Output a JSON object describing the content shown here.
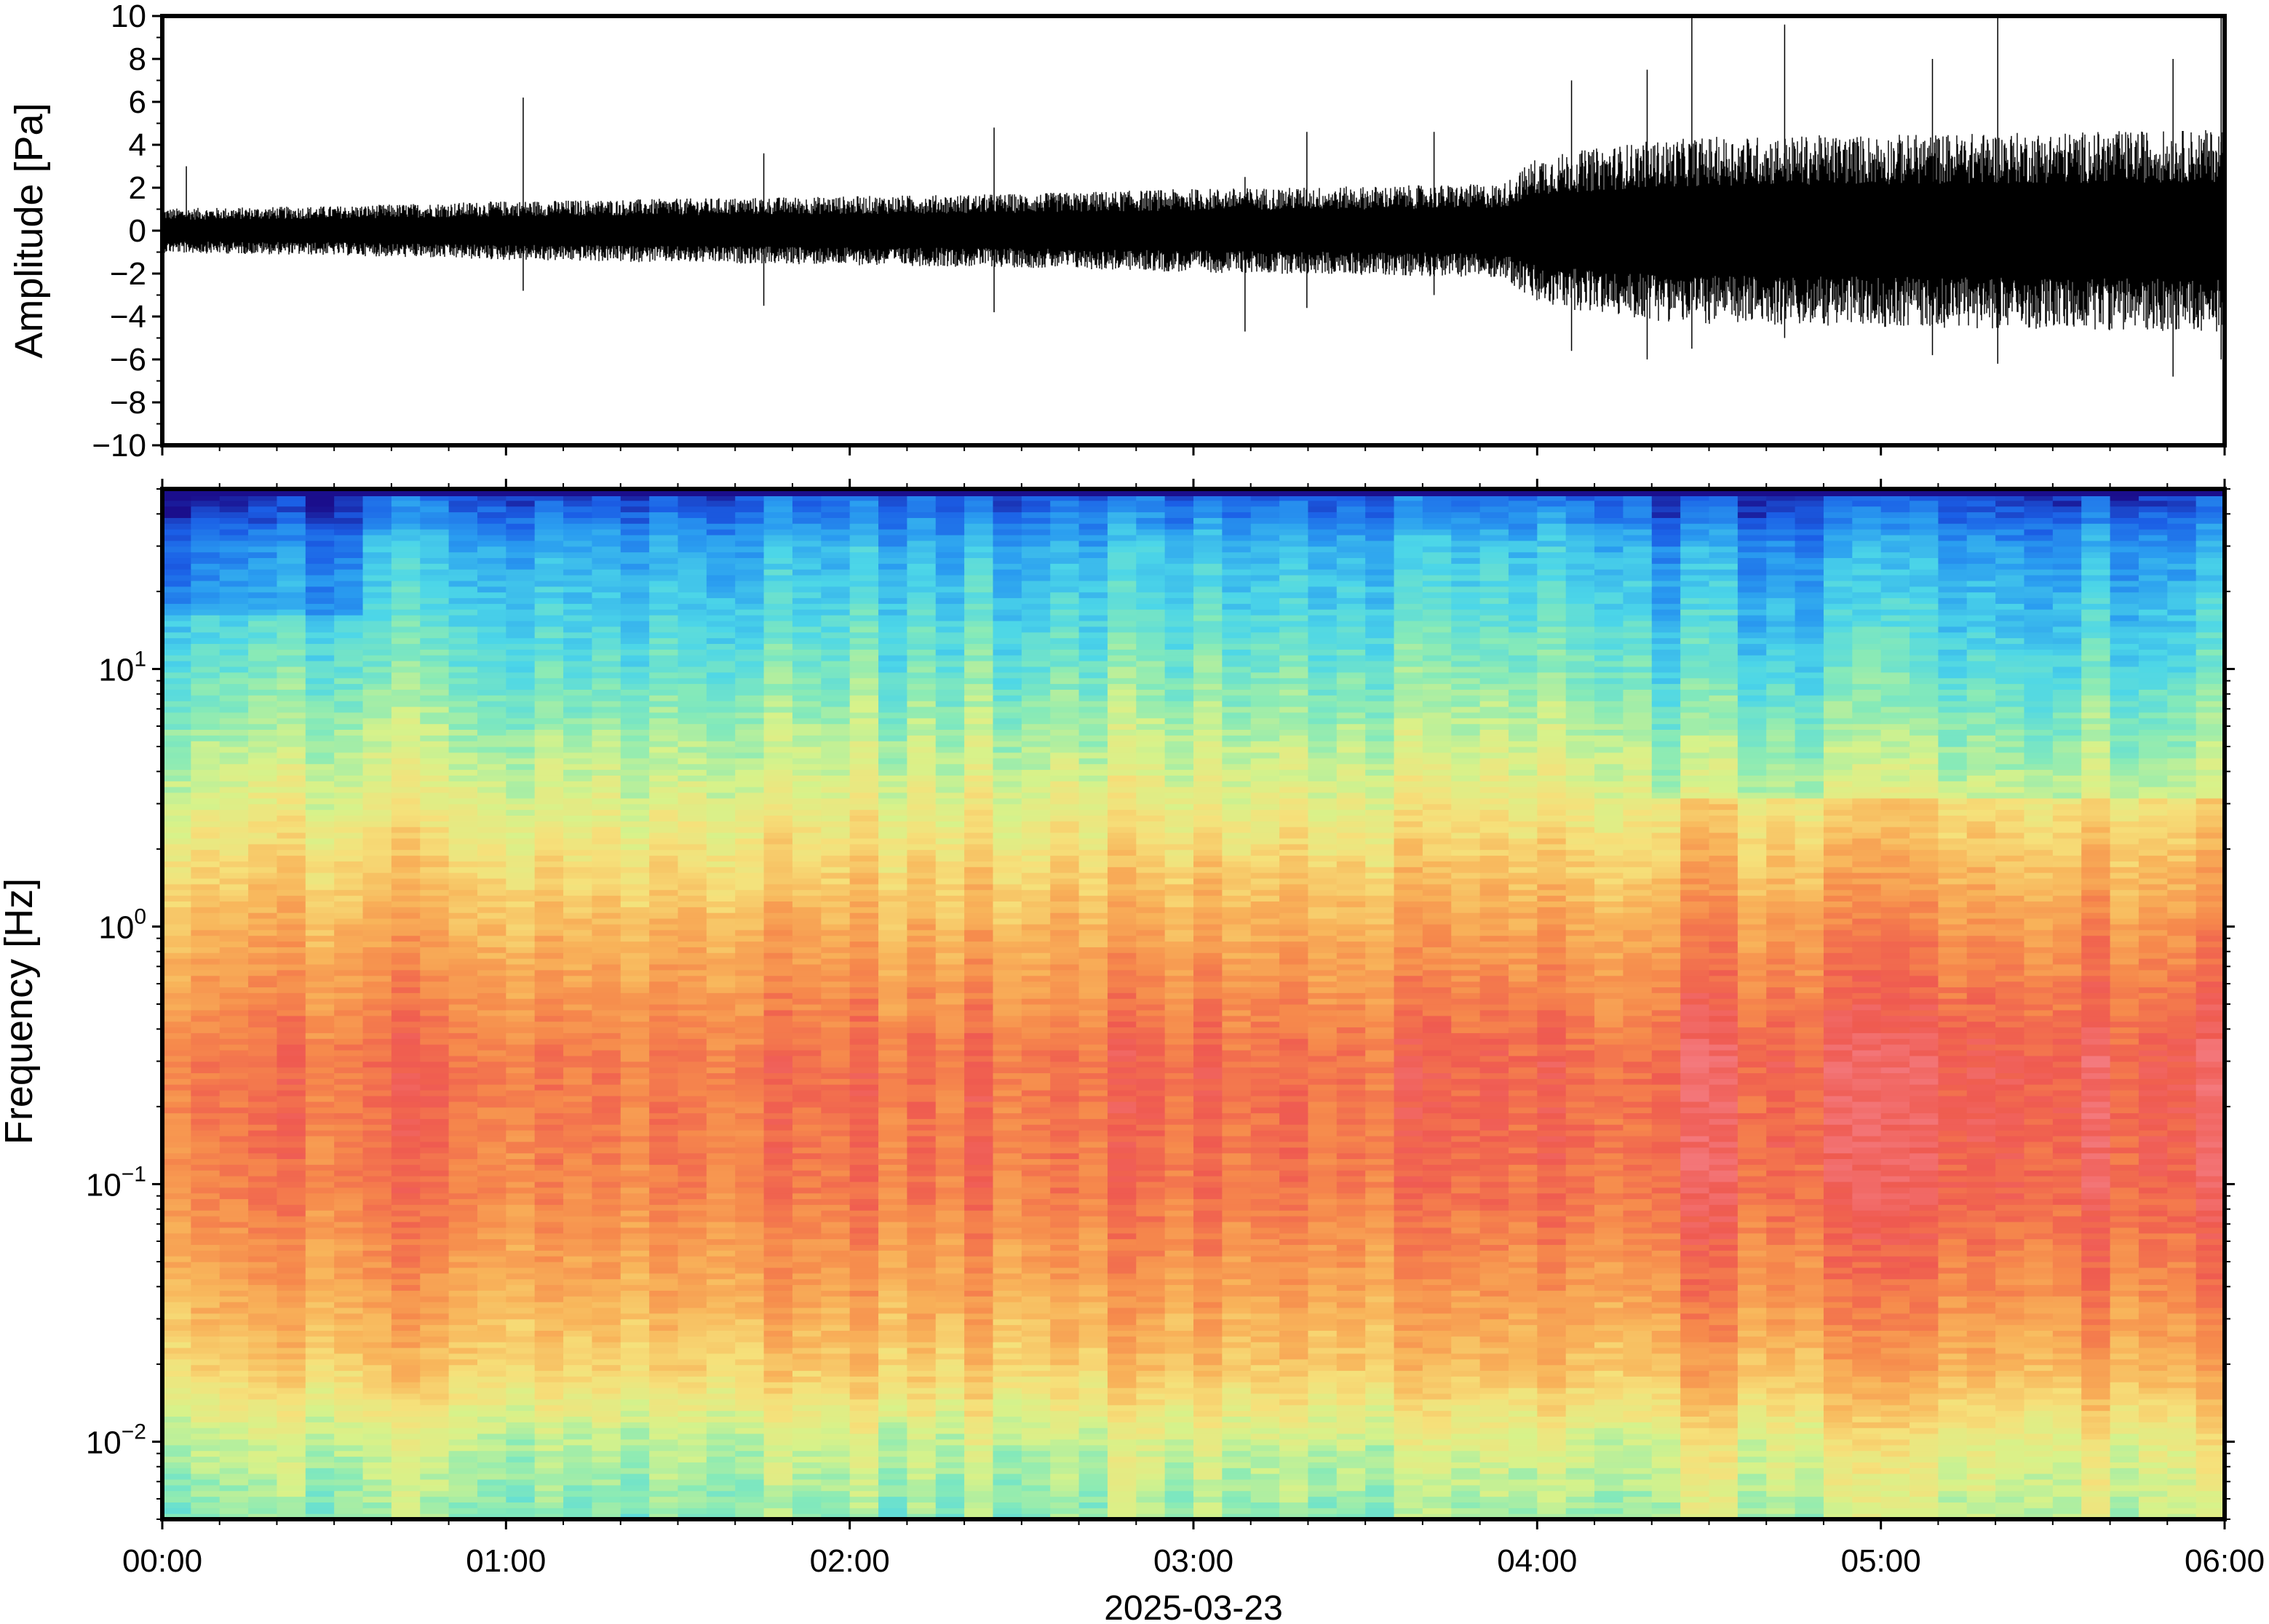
{
  "chart_data": [
    {
      "type": "line",
      "panel": "waveform",
      "title": "",
      "xlabel": "",
      "ylabel": "Amplitude [Pa]",
      "ylim": [
        -10,
        10
      ],
      "yticks": [
        {
          "value": 10,
          "label": "10"
        },
        {
          "value": 8,
          "label": "8"
        },
        {
          "value": 6,
          "label": "6"
        },
        {
          "value": 4,
          "label": "4"
        },
        {
          "value": 2,
          "label": "2"
        },
        {
          "value": 0,
          "label": "0"
        },
        {
          "value": -2,
          "label": "−2"
        },
        {
          "value": -4,
          "label": "−4"
        },
        {
          "value": -6,
          "label": "−6"
        },
        {
          "value": -8,
          "label": "−8"
        },
        {
          "value": -10,
          "label": "−10"
        }
      ],
      "xlim_hours": [
        0,
        6
      ],
      "grid": false,
      "line_color": "#000000",
      "envelope": {
        "time_hours": [
          0,
          0.5,
          1.0,
          1.5,
          2.0,
          2.5,
          3.0,
          3.5,
          3.9,
          4.0,
          4.3,
          4.5,
          5.0,
          5.5,
          6.0
        ],
        "amplitude_pa": [
          0.9,
          1.0,
          1.2,
          1.3,
          1.4,
          1.5,
          1.7,
          1.8,
          1.9,
          3.0,
          3.6,
          3.8,
          3.9,
          4.0,
          4.1
        ]
      },
      "spikes": [
        {
          "t_hours": 0.07,
          "max": 3.0,
          "min": -1.0
        },
        {
          "t_hours": 1.05,
          "max": 6.2,
          "min": -2.8
        },
        {
          "t_hours": 1.75,
          "max": 3.6,
          "min": -3.5
        },
        {
          "t_hours": 2.42,
          "max": 4.8,
          "min": -3.8
        },
        {
          "t_hours": 3.15,
          "max": 2.5,
          "min": -4.7
        },
        {
          "t_hours": 3.33,
          "max": 4.6,
          "min": -3.6
        },
        {
          "t_hours": 3.7,
          "max": 4.6,
          "min": -3.0
        },
        {
          "t_hours": 4.1,
          "max": 7.0,
          "min": -5.6
        },
        {
          "t_hours": 4.32,
          "max": 7.5,
          "min": -6.0
        },
        {
          "t_hours": 4.45,
          "max": 10.0,
          "min": -5.5
        },
        {
          "t_hours": 4.72,
          "max": 9.6,
          "min": -5.0
        },
        {
          "t_hours": 5.15,
          "max": 8.0,
          "min": -5.8
        },
        {
          "t_hours": 5.34,
          "max": 10.0,
          "min": -6.2
        },
        {
          "t_hours": 5.85,
          "max": 8.0,
          "min": -6.8
        },
        {
          "t_hours": 5.99,
          "max": 10.0,
          "min": -6.0
        }
      ]
    },
    {
      "type": "heatmap",
      "panel": "spectrogram",
      "title": "",
      "xlabel": "2025-03-23",
      "ylabel": "Frequency [Hz]",
      "yscale": "log",
      "ylim_hz": [
        0.005,
        50
      ],
      "yticks": [
        {
          "value": 10,
          "base": "10",
          "exp": "1"
        },
        {
          "value": 1,
          "base": "10",
          "exp": "0"
        },
        {
          "value": 0.1,
          "base": "10",
          "exp": "−1"
        },
        {
          "value": 0.01,
          "base": "10",
          "exp": "−2"
        }
      ],
      "colormap": [
        "#1a0e8c",
        "#1b5fe6",
        "#2a9df0",
        "#4cd6e8",
        "#86eab8",
        "#d7f28a",
        "#f6e07a",
        "#f8b45a",
        "#f68a4c",
        "#ef5a50",
        "#f47a7e"
      ],
      "time_hours": [
        0,
        2,
        4,
        4.3,
        6
      ],
      "description_profile": {
        "freq_hz": [
          0.005,
          0.01,
          0.02,
          0.04,
          0.1,
          0.3,
          1,
          3,
          10,
          30,
          45
        ],
        "level_0_to_1": [
          0.42,
          0.5,
          0.66,
          0.75,
          0.84,
          0.86,
          0.72,
          0.55,
          0.38,
          0.25,
          0.12
        ]
      }
    }
  ],
  "xaxis": {
    "ticks": [
      {
        "value": 0,
        "label": "00:00"
      },
      {
        "value": 1,
        "label": "01:00"
      },
      {
        "value": 2,
        "label": "02:00"
      },
      {
        "value": 3,
        "label": "03:00"
      },
      {
        "value": 4,
        "label": "04:00"
      },
      {
        "value": 5,
        "label": "05:00"
      },
      {
        "value": 6,
        "label": "06:00"
      }
    ],
    "date_label": "2025-03-23"
  },
  "waveform_ylabel": "Amplitude [Pa]",
  "spectrogram_ylabel": "Frequency [Hz]"
}
